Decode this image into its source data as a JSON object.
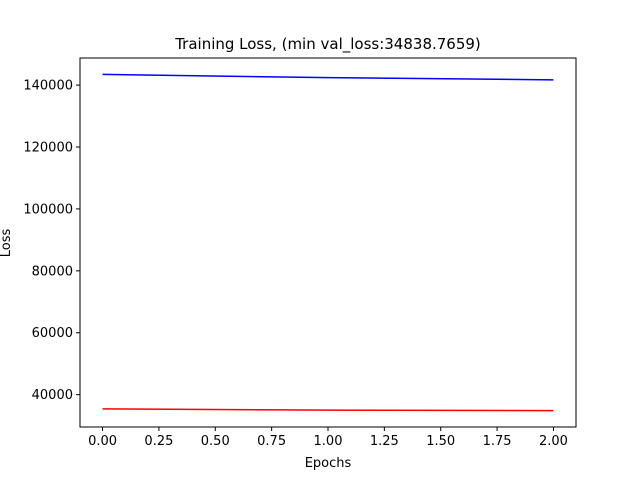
{
  "chart_data": {
    "type": "line",
    "title": "Training Loss, (min val_loss:34838.7659)",
    "xlabel": "Epochs",
    "ylabel": "Loss",
    "xlim": [
      -0.1,
      2.1
    ],
    "ylim": [
      29550,
      148750
    ],
    "xticks": [
      0.0,
      0.25,
      0.5,
      0.75,
      1.0,
      1.25,
      1.5,
      1.75,
      2.0
    ],
    "xtick_labels": [
      "0.00",
      "0.25",
      "0.50",
      "0.75",
      "1.00",
      "1.25",
      "1.50",
      "1.75",
      "2.00"
    ],
    "yticks": [
      40000,
      60000,
      80000,
      100000,
      120000,
      140000
    ],
    "ytick_labels": [
      "40000",
      "60000",
      "80000",
      "100000",
      "120000",
      "140000"
    ],
    "grid": false,
    "series": [
      {
        "color": "#0000ff",
        "x": [
          0,
          1,
          2
        ],
        "y": [
          143450,
          142400,
          141700
        ]
      },
      {
        "color": "#ff0000",
        "x": [
          0,
          1,
          2
        ],
        "y": [
          35400,
          35000,
          34838.7659
        ]
      }
    ]
  }
}
